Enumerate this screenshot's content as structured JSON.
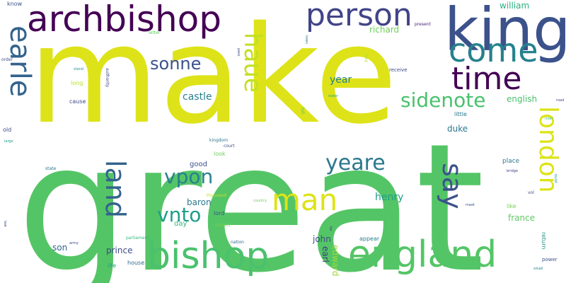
{
  "words": [
    {
      "text": "great",
      "color": "#54c566"
    },
    {
      "text": "make",
      "color": "#dde318"
    },
    {
      "text": "king",
      "color": "#3b528b"
    },
    {
      "text": "archbishop",
      "color": "#440154"
    },
    {
      "text": "person",
      "color": "#414487"
    },
    {
      "text": "come",
      "color": "#26818e"
    },
    {
      "text": "time",
      "color": "#440154"
    },
    {
      "text": "earle",
      "color": "#33638d"
    },
    {
      "text": "haue",
      "color": "#c2df23"
    },
    {
      "text": "sonne",
      "color": "#3b528b"
    },
    {
      "text": "sidenote",
      "color": "#4ac16d"
    },
    {
      "text": "london",
      "color": "#dde318"
    },
    {
      "text": "england",
      "color": "#54c566"
    },
    {
      "text": "bishop",
      "color": "#4ac16d"
    },
    {
      "text": "man",
      "color": "#dde318"
    },
    {
      "text": "land",
      "color": "#33638d"
    },
    {
      "text": "say",
      "color": "#3b528b"
    },
    {
      "text": "vpon",
      "color": "#26818e"
    },
    {
      "text": "vnto",
      "color": "#1f9e89"
    },
    {
      "text": "yeare",
      "color": "#2a788e"
    },
    {
      "text": "william",
      "color": "#2ab07f"
    },
    {
      "text": "richard",
      "color": "#6ece58"
    },
    {
      "text": "year",
      "color": "#26818e"
    },
    {
      "text": "english",
      "color": "#4ac16d"
    },
    {
      "text": "castle",
      "color": "#26818e"
    },
    {
      "text": "duke",
      "color": "#2a788e"
    },
    {
      "text": "henry",
      "color": "#1f9e89"
    },
    {
      "text": "baron",
      "color": "#2a788e"
    },
    {
      "text": "prince",
      "color": "#3e4a89"
    },
    {
      "text": "france",
      "color": "#5ec962"
    },
    {
      "text": "john",
      "color": "#3e4a89"
    },
    {
      "text": "son",
      "color": "#33638d"
    },
    {
      "text": "earl",
      "color": "#443983"
    },
    {
      "text": "edward",
      "color": "#a0da39"
    },
    {
      "text": "good",
      "color": "#3b528b"
    },
    {
      "text": "place",
      "color": "#2a788e"
    },
    {
      "text": "day",
      "color": "#35b779"
    },
    {
      "text": "lord",
      "color": "#3b528b"
    },
    {
      "text": "like",
      "color": "#7ad151"
    },
    {
      "text": "look",
      "color": "#6ece58"
    },
    {
      "text": "appear",
      "color": "#26818e"
    },
    {
      "text": "house",
      "color": "#31688e"
    },
    {
      "text": "life",
      "color": "#1f9e89"
    },
    {
      "text": "power",
      "color": "#3b528b"
    },
    {
      "text": "return",
      "color": "#21918c"
    },
    {
      "text": "know",
      "color": "#3b528b"
    },
    {
      "text": "long",
      "color": "#b5de2b"
    },
    {
      "text": "cause",
      "color": "#3e4a89"
    },
    {
      "text": "old",
      "color": "#3e4a89"
    },
    {
      "text": "little",
      "color": "#2a788e"
    },
    {
      "text": "receive",
      "color": "#3e4a89"
    },
    {
      "text": "present",
      "color": "#482475"
    },
    {
      "text": "letter",
      "color": "#5ec962"
    },
    {
      "text": "order",
      "color": "#3e4a89"
    },
    {
      "text": "authority",
      "color": "#414487"
    },
    {
      "text": "tell",
      "color": "#5ec962"
    },
    {
      "text": "way",
      "color": "#addc30"
    },
    {
      "text": "kingdom",
      "color": "#2a788e"
    },
    {
      "text": "court",
      "color": "#3e4a89"
    },
    {
      "text": "state",
      "color": "#2a788e"
    },
    {
      "text": "thousand",
      "color": "#c2df23"
    },
    {
      "text": "subject",
      "color": "#7ad151"
    },
    {
      "text": "parliament",
      "color": "#35b779"
    },
    {
      "text": "nation",
      "color": "#31688e"
    },
    {
      "text": "army",
      "color": "#3e4a89"
    },
    {
      "text": "country",
      "color": "#6ece58"
    },
    {
      "text": "vol",
      "color": "#3e4a89"
    },
    {
      "text": "bridge",
      "color": "#414487"
    },
    {
      "text": "meet",
      "color": "#3b528b"
    },
    {
      "text": "far",
      "color": "#443983"
    },
    {
      "text": "law",
      "color": "#3b528b"
    },
    {
      "text": "stand",
      "color": "#21918c"
    },
    {
      "text": "large",
      "color": "#1f9e89"
    },
    {
      "text": "pass",
      "color": "#3e4a89"
    },
    {
      "text": "town",
      "color": "#26818e"
    },
    {
      "text": "water",
      "color": "#2ab07f"
    },
    {
      "text": "river",
      "color": "#35b779"
    },
    {
      "text": "road",
      "color": "#3e4a89"
    },
    {
      "text": "build",
      "color": "#1f9e89"
    },
    {
      "text": "small",
      "color": "#26818e"
    }
  ]
}
